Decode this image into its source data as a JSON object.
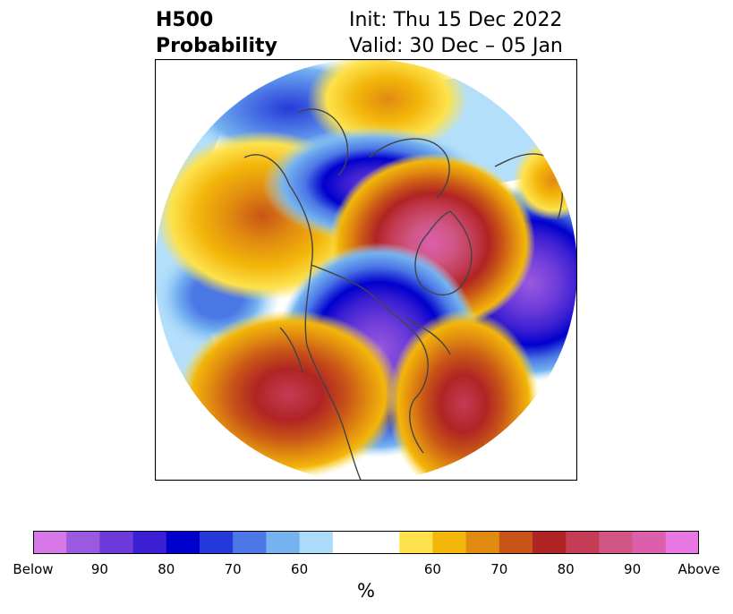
{
  "title": {
    "left_line1": "H500",
    "left_line2": "Probability",
    "right_line1": "Init: Thu 15 Dec 2022",
    "right_line2": "Valid: 30 Dec – 05 Jan"
  },
  "colorbar": {
    "unit": "%",
    "colors": [
      "#d877e8",
      "#9b59e0",
      "#6d3bd9",
      "#3b1fd2",
      "#0000cd",
      "#2539d9",
      "#4c78e6",
      "#74b2f0",
      "#acdbfa",
      "#ffffff",
      "#ffffff",
      "#fde24d",
      "#f3b60a",
      "#e08a10",
      "#c85417",
      "#b02424",
      "#c43c55",
      "#cf5685",
      "#dc5fae",
      "#e877e3"
    ],
    "tick_labels": [
      "Below",
      "90",
      "80",
      "70",
      "60",
      "60",
      "70",
      "80",
      "90",
      "Above"
    ]
  }
}
